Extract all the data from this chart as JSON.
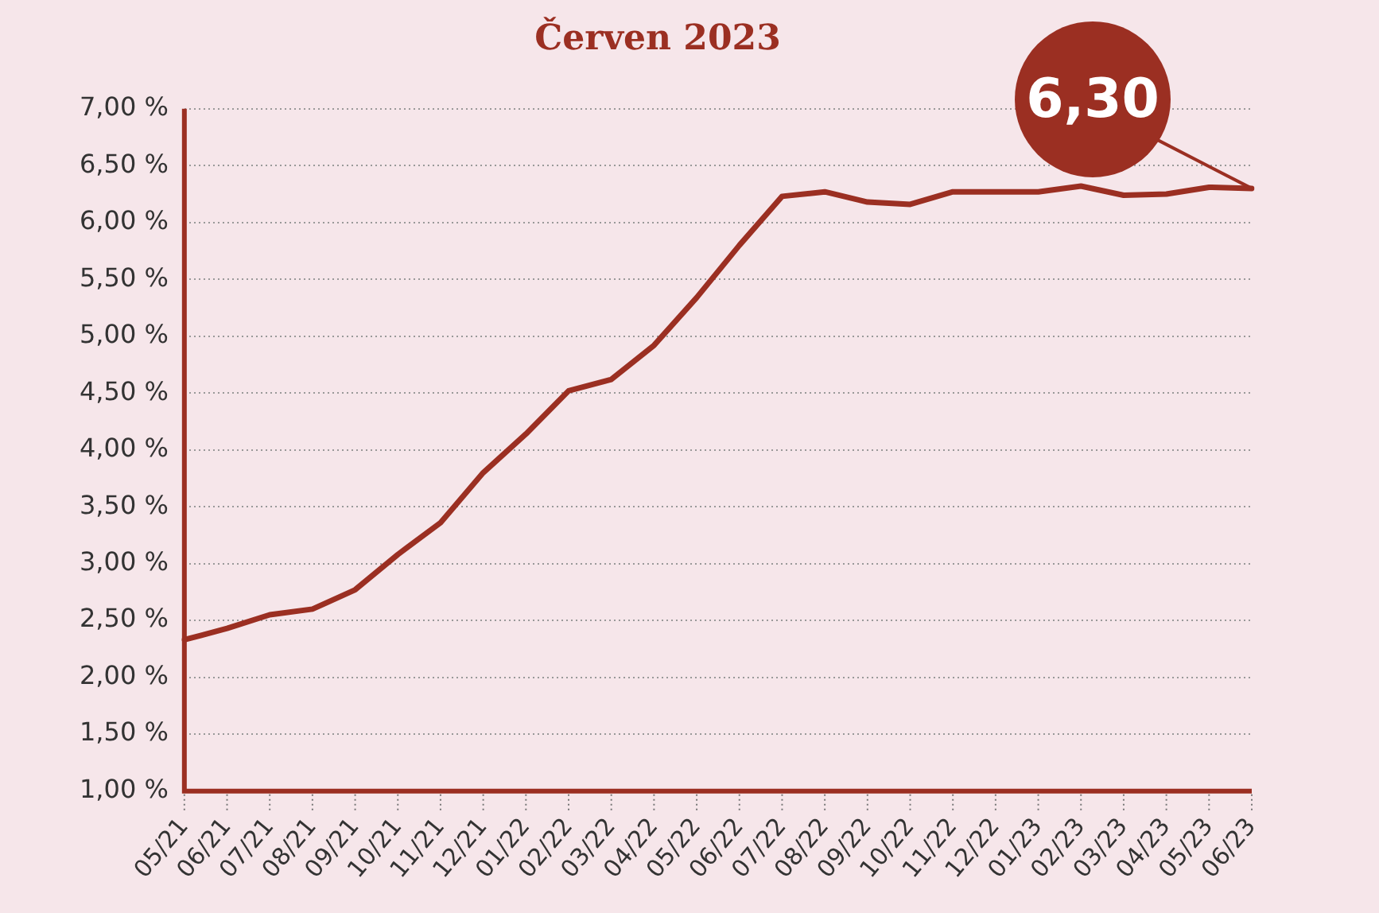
{
  "chart_data": {
    "type": "line",
    "title": "Červen 2023",
    "categories": [
      "05/21",
      "06/21",
      "07/21",
      "08/21",
      "09/21",
      "10/21",
      "11/21",
      "12/21",
      "01/22",
      "02/22",
      "03/22",
      "04/22",
      "05/22",
      "06/22",
      "07/22",
      "08/22",
      "09/22",
      "10/22",
      "11/22",
      "12/22",
      "01/23",
      "02/23",
      "03/23",
      "04/23",
      "05/23",
      "06/23"
    ],
    "series": [
      {
        "color": "#9b2f22",
        "values": [
          2.33,
          2.43,
          2.55,
          2.6,
          2.77,
          3.08,
          3.36,
          3.8,
          4.14,
          4.52,
          4.62,
          4.92,
          5.34,
          5.8,
          6.23,
          6.27,
          6.18,
          6.16,
          6.27,
          6.27,
          6.27,
          6.32,
          6.24,
          6.25,
          6.31,
          6.3
        ]
      }
    ],
    "ylim": [
      1,
      7
    ],
    "yticks": [
      {
        "value": 1,
        "label": "1,00 %"
      },
      {
        "value": 1.5,
        "label": "1,50 %"
      },
      {
        "value": 2,
        "label": "2,00 %"
      },
      {
        "value": 2.5,
        "label": "2,50 %"
      },
      {
        "value": 3,
        "label": "3,00 %"
      },
      {
        "value": 3.5,
        "label": "3,50 %"
      },
      {
        "value": 4,
        "label": "4,00 %"
      },
      {
        "value": 4.5,
        "label": "4,50 %"
      },
      {
        "value": 5,
        "label": "5,00 %"
      },
      {
        "value": 5.5,
        "label": "5,50 %"
      },
      {
        "value": 6,
        "label": "6,00 %"
      },
      {
        "value": 6.5,
        "label": "6,50 %"
      },
      {
        "value": 7,
        "label": "7,00 %"
      }
    ],
    "grid": "y",
    "legend": false,
    "marker": "none",
    "line_style": "solid",
    "annotations": [
      {
        "text": "6,30",
        "x": "06/23",
        "y": 6.3
      }
    ]
  }
}
